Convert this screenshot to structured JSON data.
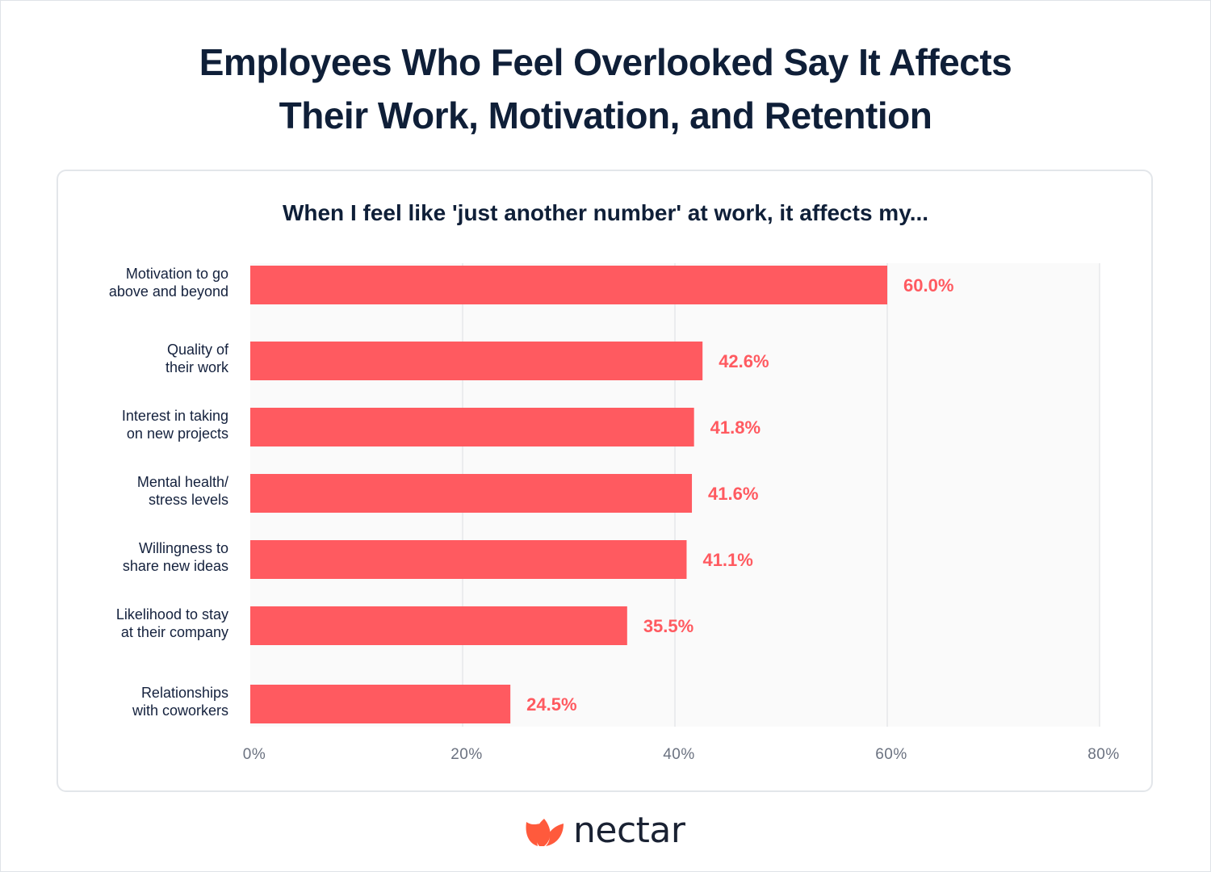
{
  "header": {
    "title_line1": "Employees Who Feel Overlooked Say It Affects",
    "title_line2": "Their Work, Motivation, and Retention"
  },
  "colors": {
    "bar": "#ff5a60",
    "label": "#ff5a60",
    "text": "#14213d",
    "grid": "#dcdfe3",
    "plot_bg": "#fafafa",
    "tick": "#6b7280"
  },
  "brand": {
    "logo_icon": "nectar-leaf-icon",
    "name": "nectar"
  },
  "chart_data": {
    "type": "bar",
    "orientation": "horizontal",
    "title": "When I feel like 'just another number' at work, it affects my...",
    "categories": [
      [
        "Motivation to go",
        "above and beyond"
      ],
      [
        "Quality of",
        "their work"
      ],
      [
        "Interest in taking",
        "on new projects"
      ],
      [
        "Mental health/",
        "stress levels"
      ],
      [
        "Willingness to",
        "share new ideas"
      ],
      [
        "Likelihood to stay",
        "at their company"
      ],
      [
        "Relationships",
        "with coworkers"
      ]
    ],
    "values": [
      60.0,
      42.6,
      41.8,
      41.6,
      41.1,
      35.5,
      24.5
    ],
    "value_labels": [
      "60.0%",
      "42.6%",
      "41.8%",
      "41.6%",
      "41.1%",
      "35.5%",
      "24.5%"
    ],
    "xlim": [
      0,
      80
    ],
    "xticks": [
      0,
      20,
      40,
      60,
      80
    ],
    "xtick_labels": [
      "0%",
      "20%",
      "40%",
      "60%",
      "80%"
    ],
    "grid": true,
    "legend": "none"
  }
}
